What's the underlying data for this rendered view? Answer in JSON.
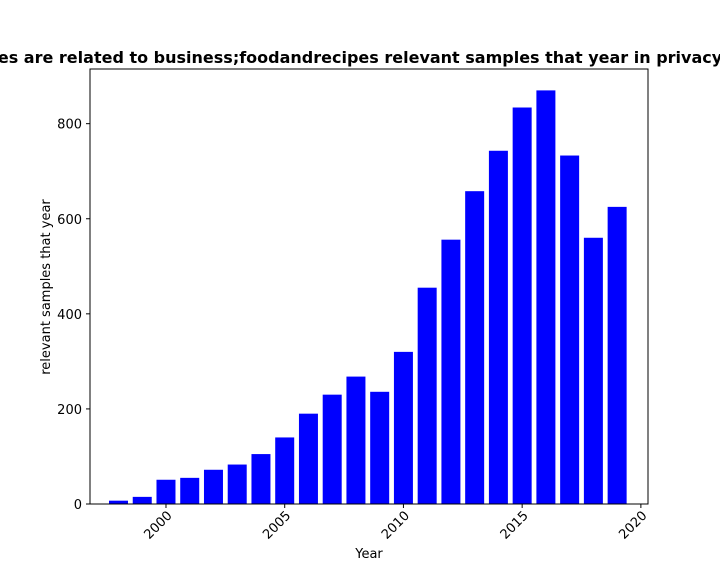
{
  "chart_data": {
    "type": "bar",
    "title": "es are related to business;foodandrecipes relevant samples that year in privacy",
    "xlabel": "Year",
    "ylabel": "relevant samples that year",
    "x": [
      1998,
      1999,
      2000,
      2001,
      2002,
      2003,
      2004,
      2005,
      2006,
      2007,
      2008,
      2009,
      2010,
      2011,
      2012,
      2013,
      2014,
      2015,
      2016,
      2017,
      2018,
      2019
    ],
    "values": [
      7,
      15,
      51,
      55,
      72,
      83,
      105,
      140,
      190,
      230,
      268,
      236,
      320,
      455,
      556,
      658,
      743,
      834,
      870,
      733,
      560,
      625
    ],
    "xlim": [
      1996.8,
      2020.3
    ],
    "ylim": [
      0,
      915
    ],
    "x_ticks": [
      2000,
      2005,
      2010,
      2015,
      2020
    ],
    "y_ticks": [
      0,
      200,
      400,
      600,
      800
    ],
    "bar_color": "#0000ff",
    "grid": false,
    "legend": "none"
  }
}
